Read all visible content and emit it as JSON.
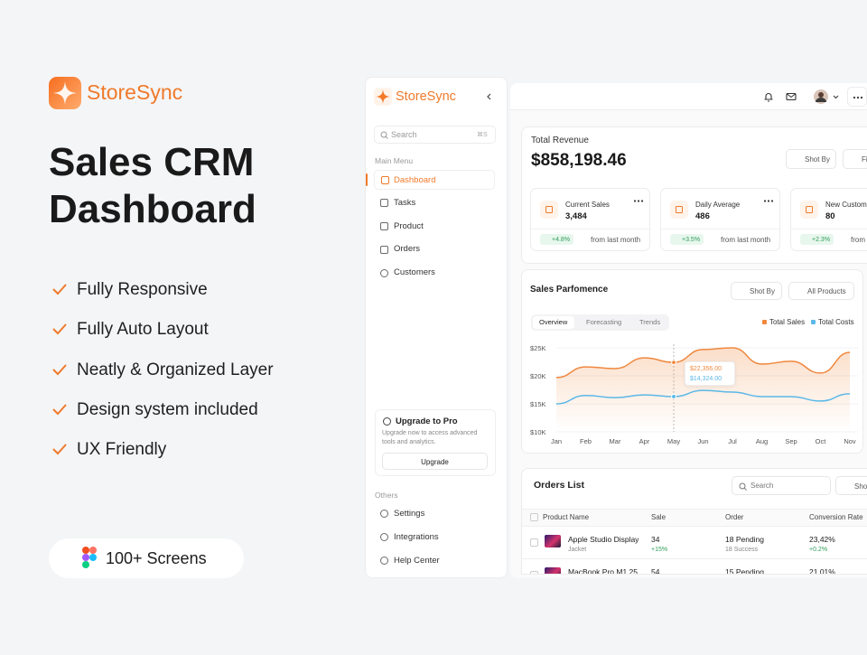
{
  "hero": {
    "brand": "StoreSync",
    "title_lines": [
      "Sales CRM",
      "Dashboard"
    ],
    "features": [
      "Fully Responsive",
      "Fully Auto Layout",
      "Neatly & Organized Layer",
      "Design system included",
      "UX Friendly"
    ],
    "badge": "100+ Screens"
  },
  "sidebar": {
    "brand": "StoreSync",
    "search": "Search",
    "shortcut": "⌘S",
    "main_menu_label": "Main Menu",
    "main_menu": [
      "Dashboard",
      "Tasks",
      "Product",
      "Orders",
      "Customers"
    ],
    "upgrade": {
      "title": "Upgrade to Pro",
      "text": "Upgrade now to access advanced tools and analytics.",
      "button": "Upgrade"
    },
    "others_label": "Others",
    "others": [
      "Settings",
      "Integrations",
      "Help Center"
    ]
  },
  "revenue": {
    "label": "Total Revenue",
    "value": "$858,198.46",
    "sort_button": "Shot By",
    "filter_button": "Filter",
    "stats": [
      {
        "label": "Current Sales",
        "value": "3,484",
        "change": "+4.8%",
        "note": "from last month"
      },
      {
        "label": "Daily Average",
        "value": "486",
        "change": "+3.5%",
        "note": "from last month"
      },
      {
        "label": "New Customers",
        "value": "80",
        "change": "+2.3%",
        "note": "from last month"
      }
    ]
  },
  "chart_data": {
    "type": "line",
    "title": "Sales Parfomence",
    "buttons": [
      "Shot By",
      "All Products"
    ],
    "tabs": [
      "Overview",
      "Forecasting",
      "Trends"
    ],
    "categories": [
      "Jan",
      "Feb",
      "Mar",
      "Apr",
      "May",
      "Jun",
      "Jul",
      "Aug",
      "Sep",
      "Oct",
      "Nov"
    ],
    "series": [
      {
        "name": "Total Sales",
        "color": "#f0883e",
        "values": [
          19.7,
          21.6,
          21.3,
          23.2,
          22.4,
          24.7,
          25,
          22.1,
          22.6,
          20.5,
          24.2
        ]
      },
      {
        "name": "Total Costs",
        "color": "#5bb8e8",
        "values": [
          15,
          16.5,
          16.1,
          16.6,
          16.3,
          17.4,
          17.1,
          16.3,
          16.3,
          15.5,
          16.8
        ]
      }
    ],
    "ylim": [
      10,
      25
    ],
    "yticks": [
      {
        "value": 10,
        "label": "$10K"
      },
      {
        "value": 15,
        "label": "$15K"
      },
      {
        "value": 20,
        "label": "$20K"
      },
      {
        "value": 25,
        "label": "$25K"
      }
    ],
    "annotations": [
      "$22,356.00",
      "$14,324.00"
    ]
  },
  "orders": {
    "title": "Orders List",
    "search": "Search",
    "sort_button": "Shot By",
    "columns": [
      "Product Name",
      "Sale",
      "Order",
      "Conversion Rate"
    ],
    "rows": [
      {
        "product": "Apple Studio Display",
        "category": "Jacket",
        "sale": "34",
        "sale_change": "+15%",
        "order": "18 Pending",
        "order_detail": "18 Success",
        "conversion": "23,42%",
        "conversion_change": "+0.2%"
      },
      {
        "product": "MacBook Pro M1 25",
        "sale": "54",
        "order": "15 Pending",
        "conversion": "21,01%"
      }
    ]
  }
}
